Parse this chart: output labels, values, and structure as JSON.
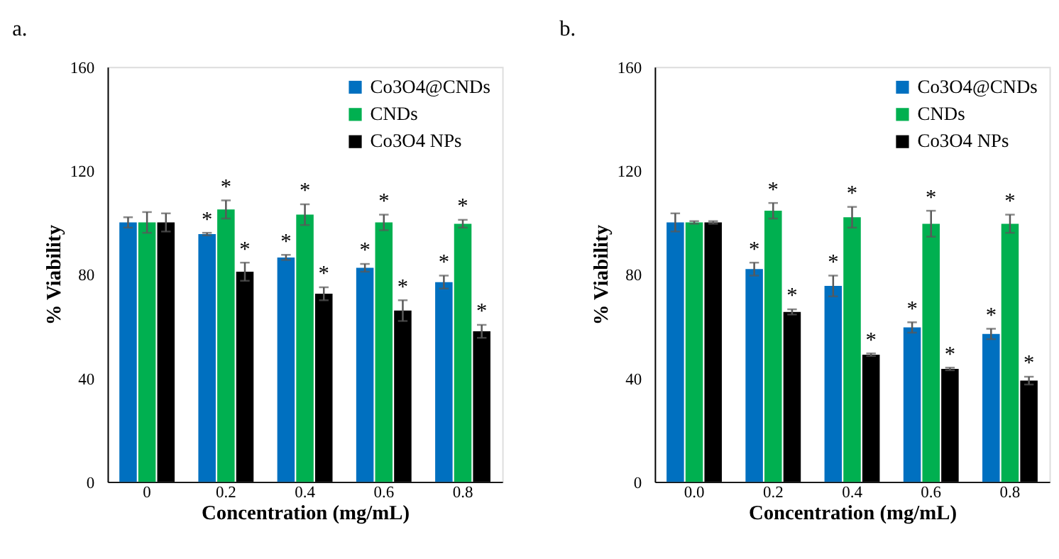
{
  "chart_data": [
    {
      "type": "bar",
      "title": "a.",
      "xlabel": "Concentration (mg/mL)",
      "ylabel": "% Viability",
      "categories": [
        "0",
        "0.2",
        "0.4",
        "0.6",
        "0.8"
      ],
      "ylim": [
        0,
        160
      ],
      "yticks": [
        0,
        40,
        80,
        120,
        160
      ],
      "grid": false,
      "legend": "top right",
      "series": [
        {
          "name": "Co3O4@CNDs",
          "color": "#0070c0",
          "values": [
            100,
            95.5,
            86.5,
            82.5,
            77
          ],
          "errors": [
            2,
            0.5,
            1,
            1.5,
            2.5
          ],
          "value_labels": [
            null,
            "*",
            "*",
            "*",
            "*"
          ]
        },
        {
          "name": "CNDs",
          "color": "#00b050",
          "values": [
            100,
            105,
            103,
            100,
            99.5
          ],
          "errors": [
            4,
            3.5,
            4,
            3,
            1.5
          ],
          "value_labels": [
            null,
            "*",
            "*",
            "*",
            "*"
          ]
        },
        {
          "name": "Co3O4 NPs",
          "color": "#000000",
          "values": [
            100,
            81,
            72.5,
            66,
            58
          ],
          "errors": [
            3.5,
            3.5,
            2.5,
            4,
            2.5
          ],
          "value_labels": [
            null,
            "*",
            "*",
            "*",
            "*"
          ]
        }
      ]
    },
    {
      "type": "bar",
      "title": "b.",
      "xlabel": "Concentration (mg/mL)",
      "ylabel": "% Viability",
      "categories": [
        "0.0",
        "0.2",
        "0.4",
        "0.6",
        "0.8"
      ],
      "ylim": [
        0,
        160
      ],
      "yticks": [
        0,
        40,
        80,
        120,
        160
      ],
      "grid": false,
      "legend": "top right",
      "series": [
        {
          "name": "Co3O4@CNDs",
          "color": "#0070c0",
          "values": [
            100,
            82,
            75.5,
            59.5,
            57
          ],
          "errors": [
            3.5,
            2.5,
            4,
            2,
            2
          ],
          "value_labels": [
            null,
            "*",
            "*",
            "*",
            "*"
          ]
        },
        {
          "name": "CNDs",
          "color": "#00b050",
          "values": [
            100,
            104.5,
            102,
            99.5,
            99.5
          ],
          "errors": [
            0.5,
            3,
            4,
            5,
            3.5
          ],
          "value_labels": [
            null,
            "*",
            "*",
            "*",
            "*"
          ]
        },
        {
          "name": "Co3O4 NPs",
          "color": "#000000",
          "values": [
            100,
            65.5,
            49,
            43.5,
            39
          ],
          "errors": [
            0.5,
            1,
            0.5,
            0.5,
            1.5
          ],
          "value_labels": [
            null,
            "*",
            "*",
            "*",
            "*"
          ]
        }
      ]
    }
  ]
}
